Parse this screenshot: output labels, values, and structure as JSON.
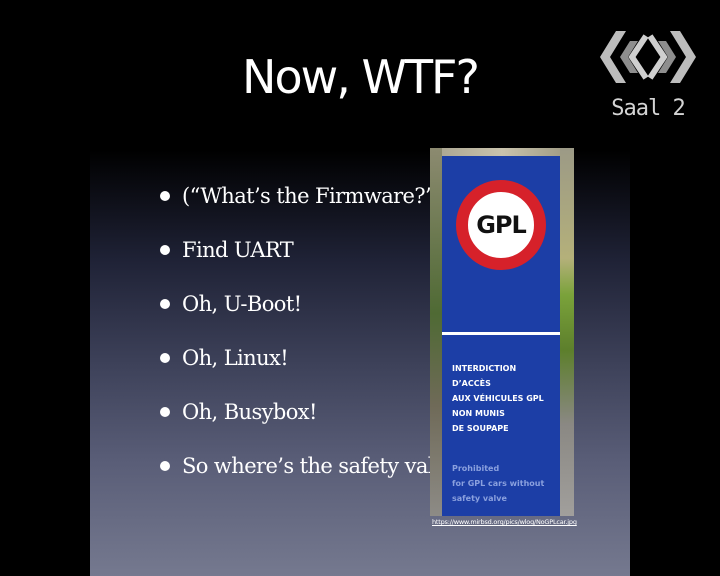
{
  "slide": {
    "title": "Now, WTF?",
    "bullets": [
      "(“What’s the Firmware?”)",
      "Find UART",
      "Oh, U-Boot!",
      "Oh, Linux!",
      "Oh, Busybox!",
      "So where’s the safety valve?"
    ],
    "photo": {
      "sign_symbol": "GPL",
      "sign_text_fr": [
        "INTERDICTION",
        "D’ACCÈS",
        "AUX VÉHICULES GPL",
        "NON MUNIS",
        "DE SOUPAPE"
      ],
      "sign_text_en": [
        "Prohibited",
        "for GPL cars without",
        "safety valve"
      ],
      "credit_url": "https://www.mirbsd.org/pics/wlog/NoGPLcar.jpg"
    }
  },
  "overlay": {
    "logo_icon": "event-logo-icon",
    "room_label": "Saal 2"
  },
  "colors": {
    "background": "#000000",
    "sign_blue": "#1c3ea6",
    "sign_red": "#d6212a",
    "text": "#ffffff",
    "room_label": "#d4d4d4"
  }
}
